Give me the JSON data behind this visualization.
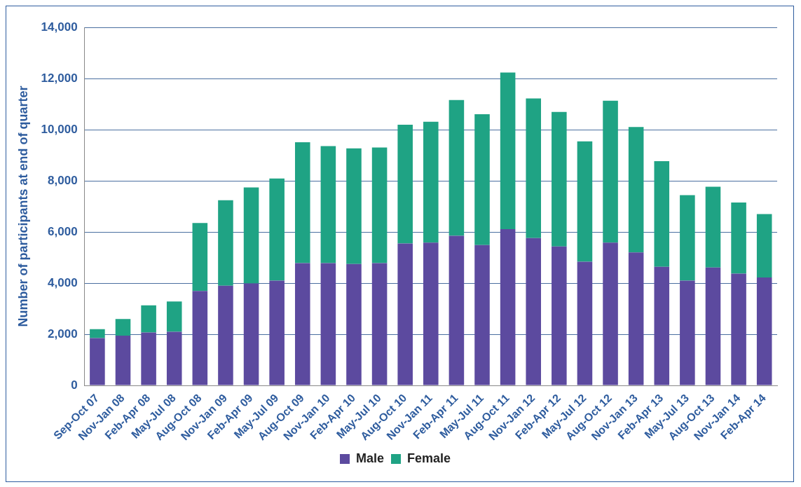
{
  "chart_data": {
    "type": "bar",
    "stacked": true,
    "ylabel": "Number of participants at end of quarter",
    "categories": [
      "Sep-Oct 07",
      "Nov-Jan 08",
      "Feb-Apr 08",
      "May-Jul 08",
      "Aug-Oct 08",
      "Nov-Jan 09",
      "Feb-Apr 09",
      "May-Jul 09",
      "Aug-Oct 09",
      "Nov-Jan 10",
      "Feb-Apr 10",
      "May-Jul 10",
      "Aug-Oct 10",
      "Nov-Jan 11",
      "Feb-Apr 11",
      "May-Jul 11",
      "Aug-Oct 11",
      "Nov-Jan 12",
      "Feb-Apr 12",
      "May-Jul 12",
      "Aug-Oct 12",
      "Nov-Jan 13",
      "Feb-Apr 13",
      "May-Jul 13",
      "Aug-Oct 13",
      "Nov-Jan 14",
      "Feb-Apr 14"
    ],
    "series": [
      {
        "name": "Male",
        "color": "#5c4a9f",
        "values": [
          1850,
          1950,
          2070,
          2100,
          3690,
          3900,
          3990,
          4100,
          4780,
          4780,
          4750,
          4780,
          5550,
          5580,
          5850,
          5490,
          6110,
          5760,
          5430,
          4840,
          5580,
          5200,
          4640,
          4100,
          4610,
          4370,
          4220
        ]
      },
      {
        "name": "Female",
        "color": "#1fa384",
        "values": [
          350,
          650,
          1060,
          1180,
          2660,
          3340,
          3750,
          3990,
          4730,
          4580,
          4520,
          4520,
          4640,
          4730,
          5310,
          5110,
          6120,
          5460,
          5260,
          4700,
          5550,
          4900,
          4130,
          3340,
          3160,
          2780,
          2480
        ]
      }
    ],
    "ylim": [
      0,
      14000
    ],
    "yticks": [
      {
        "value": 0,
        "label": "0"
      },
      {
        "value": 2000,
        "label": "2,000"
      },
      {
        "value": 4000,
        "label": "4,000"
      },
      {
        "value": 6000,
        "label": "6,000"
      },
      {
        "value": 8000,
        "label": "8,000"
      },
      {
        "value": 10000,
        "label": "10,000"
      },
      {
        "value": 12000,
        "label": "12,000"
      },
      {
        "value": 14000,
        "label": "14,000"
      }
    ],
    "grid": "y",
    "legend": "bottom"
  }
}
